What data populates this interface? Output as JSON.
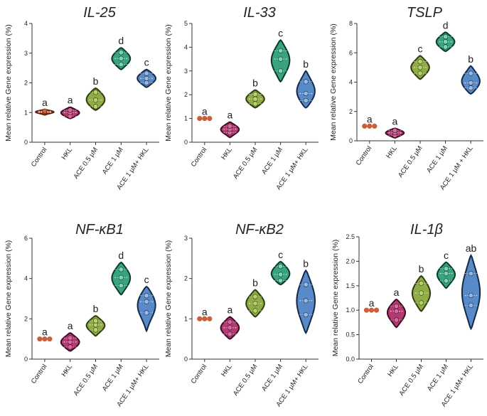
{
  "chart_data": [
    {
      "type": "violin",
      "title": "IL-25",
      "ylabel": "Mean relative Gene expression (%)",
      "ylim": [
        0,
        4
      ],
      "yticks": [
        0,
        1,
        2,
        3,
        4
      ],
      "categories": [
        "Control",
        "HKL",
        "ACE 0.5 µM",
        "ACE 1 µM",
        "ACE 1 µM+ HKL"
      ],
      "series": [
        {
          "name": "Control",
          "points": [
            1.0,
            1.02,
            1.05
          ],
          "low": 0.92,
          "high": 1.1,
          "letter": "a"
        },
        {
          "name": "HKL",
          "points": [
            0.88,
            1.0,
            1.08
          ],
          "low": 0.8,
          "high": 1.18,
          "letter": "a"
        },
        {
          "name": "ACE 0.5 µM",
          "points": [
            1.2,
            1.42,
            1.68
          ],
          "low": 1.08,
          "high": 1.82,
          "letter": "b"
        },
        {
          "name": "ACE 1 µM",
          "points": [
            2.62,
            2.82,
            3.02
          ],
          "low": 2.45,
          "high": 3.18,
          "letter": "d"
        },
        {
          "name": "ACE 1 µM+ HKL",
          "points": [
            2.0,
            2.15,
            2.32
          ],
          "low": 1.85,
          "high": 2.45,
          "letter": "c"
        }
      ]
    },
    {
      "type": "violin",
      "title": "IL-33",
      "ylabel": "Mean relative Gene expression (%)",
      "ylim": [
        0,
        5
      ],
      "yticks": [
        0,
        1,
        2,
        3,
        4,
        5
      ],
      "categories": [
        "Control",
        "HKL",
        "ACE 0.5 µM",
        "ACE 1 µM",
        "ACE 1 µM+ HKL"
      ],
      "series": [
        {
          "name": "Control",
          "points": [
            1.0,
            1.0,
            1.0
          ],
          "low": 1.0,
          "high": 1.0,
          "letter": "a"
        },
        {
          "name": "HKL",
          "points": [
            0.4,
            0.55,
            0.68
          ],
          "low": 0.2,
          "high": 0.85,
          "letter": "a"
        },
        {
          "name": "ACE 0.5 µM",
          "points": [
            1.62,
            1.82,
            2.02
          ],
          "low": 1.45,
          "high": 2.2,
          "letter": "b"
        },
        {
          "name": "ACE 1 µM",
          "points": [
            3.0,
            3.5,
            3.85
          ],
          "low": 2.55,
          "high": 4.3,
          "letter": "c"
        },
        {
          "name": "ACE 1 µM+ HKL",
          "points": [
            1.75,
            2.05,
            2.55
          ],
          "low": 1.45,
          "high": 3.0,
          "letter": "b"
        }
      ]
    },
    {
      "type": "violin",
      "title": "TSLP",
      "ylabel": "Mean relative Gene expression (%)",
      "ylim": [
        0,
        8
      ],
      "yticks": [
        0,
        2,
        4,
        6,
        8
      ],
      "categories": [
        "Control",
        "HKL",
        "ACE 0.5 µM",
        "ACE 1 µM",
        "ACE 1 µM + HKL"
      ],
      "series": [
        {
          "name": "Control",
          "points": [
            1.0,
            1.0,
            1.0
          ],
          "low": 1.0,
          "high": 1.0,
          "letter": "a"
        },
        {
          "name": "HKL",
          "points": [
            0.38,
            0.55,
            0.7
          ],
          "low": 0.2,
          "high": 0.85,
          "letter": "a"
        },
        {
          "name": "ACE 0.5 µM",
          "points": [
            4.6,
            5.0,
            5.4
          ],
          "low": 4.2,
          "high": 5.8,
          "letter": "c"
        },
        {
          "name": "ACE 1 µM",
          "points": [
            6.4,
            6.75,
            7.1
          ],
          "low": 6.1,
          "high": 7.4,
          "letter": "d"
        },
        {
          "name": "ACE 1 µM + HKL",
          "points": [
            3.6,
            3.95,
            4.6
          ],
          "low": 3.2,
          "high": 5.1,
          "letter": "b"
        }
      ]
    },
    {
      "type": "violin",
      "title": "NF-κB1",
      "ylabel": "Mean relative Gene expression (%)",
      "ylim": [
        0,
        6
      ],
      "yticks": [
        0,
        2,
        4,
        6
      ],
      "categories": [
        "Control",
        "HKL",
        "ACE 0.5 µM",
        "ACE 1 µM",
        "ACE 1 µM+ HKL"
      ],
      "series": [
        {
          "name": "Control",
          "points": [
            1.0,
            1.0,
            1.0
          ],
          "low": 1.0,
          "high": 1.0,
          "letter": "a"
        },
        {
          "name": "HKL",
          "points": [
            0.6,
            0.85,
            1.05
          ],
          "low": 0.4,
          "high": 1.3,
          "letter": "a"
        },
        {
          "name": "ACE 0.5 µM",
          "points": [
            1.45,
            1.7,
            1.9
          ],
          "low": 1.15,
          "high": 2.15,
          "letter": "b"
        },
        {
          "name": "ACE 1 µM",
          "points": [
            3.65,
            4.05,
            4.45
          ],
          "low": 3.2,
          "high": 4.8,
          "letter": "d"
        },
        {
          "name": "ACE 1 µM+ HKL",
          "points": [
            2.3,
            2.85,
            3.15
          ],
          "low": 1.4,
          "high": 3.6,
          "letter": "c"
        }
      ]
    },
    {
      "type": "violin",
      "title": "NF-κB2",
      "ylabel": "Mean relative Gene expression (%)",
      "ylim": [
        0,
        3
      ],
      "yticks": [
        0,
        1,
        2,
        3
      ],
      "categories": [
        "Control",
        "HKL",
        "ACE 0.5 µM",
        "ACE 1 µM",
        "ACE 1 µM+ HKL"
      ],
      "series": [
        {
          "name": "Control",
          "points": [
            1.0,
            1.0,
            1.0
          ],
          "low": 1.0,
          "high": 1.0,
          "letter": "a"
        },
        {
          "name": "HKL",
          "points": [
            0.62,
            0.78,
            0.92
          ],
          "low": 0.5,
          "high": 1.05,
          "letter": "a"
        },
        {
          "name": "ACE 0.5 µM",
          "points": [
            1.2,
            1.38,
            1.55
          ],
          "low": 1.05,
          "high": 1.72,
          "letter": "b"
        },
        {
          "name": "ACE 1 µM",
          "points": [
            1.95,
            2.1,
            2.3
          ],
          "low": 1.85,
          "high": 2.42,
          "letter": "c"
        },
        {
          "name": "ACE 1 µM+ HKL",
          "points": [
            1.1,
            1.45,
            1.85
          ],
          "low": 0.65,
          "high": 2.2,
          "letter": "b"
        }
      ]
    },
    {
      "type": "violin",
      "title": "IL-1β",
      "ylabel": "Mean relative Gene expression (%)",
      "ylim": [
        0,
        2.5
      ],
      "yticks": [
        0.0,
        0.5,
        1.0,
        1.5,
        2.0,
        2.5
      ],
      "categories": [
        "Control",
        "HKL",
        "ACE 0.5 µM",
        "ACE 1 µM",
        "ACE 1 µM+ HKL"
      ],
      "series": [
        {
          "name": "Control",
          "points": [
            1.0,
            1.0,
            1.0
          ],
          "low": 1.0,
          "high": 1.0,
          "letter": "a"
        },
        {
          "name": "HKL",
          "points": [
            0.8,
            0.98,
            1.08
          ],
          "low": 0.65,
          "high": 1.22,
          "letter": "a"
        },
        {
          "name": "ACE 0.5 µM",
          "points": [
            1.15,
            1.35,
            1.55
          ],
          "low": 0.98,
          "high": 1.7,
          "letter": "b"
        },
        {
          "name": "ACE 1 µM",
          "points": [
            1.6,
            1.75,
            1.85
          ],
          "low": 1.45,
          "high": 1.98,
          "letter": "c"
        },
        {
          "name": "ACE 1 µM+ HKL",
          "points": [
            1.1,
            1.3,
            1.75
          ],
          "low": 0.62,
          "high": 2.12,
          "letter": "ab"
        }
      ]
    }
  ],
  "palette": {
    "fills": [
      "#c9603b",
      "#b0306a",
      "#8aa83c",
      "#2e9e7a",
      "#4f84c4"
    ],
    "strokes": [
      "#5a1d0e",
      "#3d0b22",
      "#2f3d0c",
      "#073a2c",
      "#13294a"
    ],
    "points": [
      "#c9603b",
      "#d86aa0",
      "#b9cf6e",
      "#7fd2b3",
      "#98b8e2"
    ],
    "axis": "#333333"
  }
}
